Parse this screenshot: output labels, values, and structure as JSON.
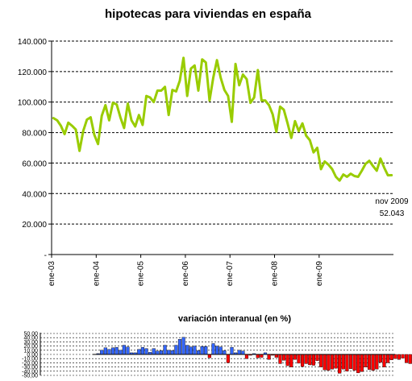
{
  "chart_data": [
    {
      "type": "line",
      "title": "hipotecas para viviendas en españa",
      "xlabel": "",
      "ylabel": "",
      "ylim": [
        0,
        140000
      ],
      "y_ticks": [
        0,
        20000,
        40000,
        60000,
        80000,
        100000,
        120000,
        140000
      ],
      "y_tick_labels": [
        "-",
        "20.000",
        "40.000",
        "60.000",
        "80.000",
        "100.000",
        "120.000",
        "140.000"
      ],
      "x_tick_labels": [
        "ene-03",
        "ene-04",
        "ene-05",
        "ene-06",
        "ene-07",
        "ene-08",
        "ene-09"
      ],
      "grid": true,
      "series": [
        {
          "color": "#99cc00",
          "start": "ene-03",
          "end": "nov-09",
          "values": [
            89500,
            88000,
            84500,
            79000,
            86500,
            84500,
            82000,
            68000,
            81000,
            88500,
            90000,
            78500,
            72500,
            91000,
            98000,
            88000,
            99500,
            98500,
            90000,
            83000,
            99000,
            88000,
            84000,
            91500,
            85000,
            104000,
            103000,
            100000,
            107500,
            107500,
            110000,
            91500,
            108000,
            107000,
            114000,
            129000,
            104000,
            122000,
            124000,
            107500,
            128000,
            126000,
            101000,
            116000,
            127500,
            116000,
            108000,
            104000,
            87000,
            125000,
            111000,
            118000,
            115000,
            99500,
            103000,
            121000,
            101000,
            101000,
            98000,
            92000,
            80500,
            97000,
            95000,
            86000,
            76500,
            87500,
            81000,
            86000,
            78000,
            75000,
            67000,
            70000,
            56000,
            61000,
            59000,
            56000,
            51000,
            48500,
            52500,
            51000,
            53000,
            51500,
            51000,
            55000,
            59500,
            61500,
            58000,
            55000,
            63000,
            57000,
            52000,
            52043
          ]
        }
      ],
      "annotations": [
        {
          "label": "nov 2009",
          "value": "52.043"
        }
      ]
    },
    {
      "type": "bar",
      "title": "variación interanual (en %)",
      "ylim": [
        -50,
        50
      ],
      "y_ticks": [
        50,
        40,
        30,
        20,
        10,
        0,
        -10,
        -20,
        -30,
        -40,
        -50
      ],
      "y_tick_labels": [
        "50,00",
        "40,00",
        "30,00",
        "20,00",
        "10,00",
        "0,00",
        "-10,00",
        "-20,00",
        "-30,00",
        "-40,00",
        "-50,00"
      ],
      "grid": true,
      "colors": {
        "positive": "#3366ff",
        "negative": "#ff0000"
      },
      "start": "ene-04",
      "end": "nov-09",
      "values": [
        2,
        10,
        16,
        12,
        16,
        17,
        10,
        22,
        18,
        4,
        4,
        12,
        17,
        14,
        5,
        14,
        8,
        9,
        22,
        10,
        9,
        22,
        36,
        41,
        22,
        18,
        20,
        9,
        19,
        19,
        -8,
        26,
        20,
        18,
        9,
        -20,
        17,
        4,
        10,
        8,
        -10,
        -2,
        2,
        -8,
        -7,
        4,
        -12,
        -2,
        -7,
        -22,
        -14,
        -27,
        -30,
        -12,
        -21,
        -29,
        -22,
        -25,
        -26,
        -15,
        -30,
        -37,
        -38,
        -35,
        -33,
        -45,
        -35,
        -40,
        -34,
        -38,
        -44,
        -41,
        -30,
        -36,
        -38,
        -35,
        -19,
        -30,
        -20,
        -13,
        -10,
        -12,
        -9,
        -20,
        -22,
        -25,
        -22,
        -17,
        -20
      ]
    }
  ]
}
